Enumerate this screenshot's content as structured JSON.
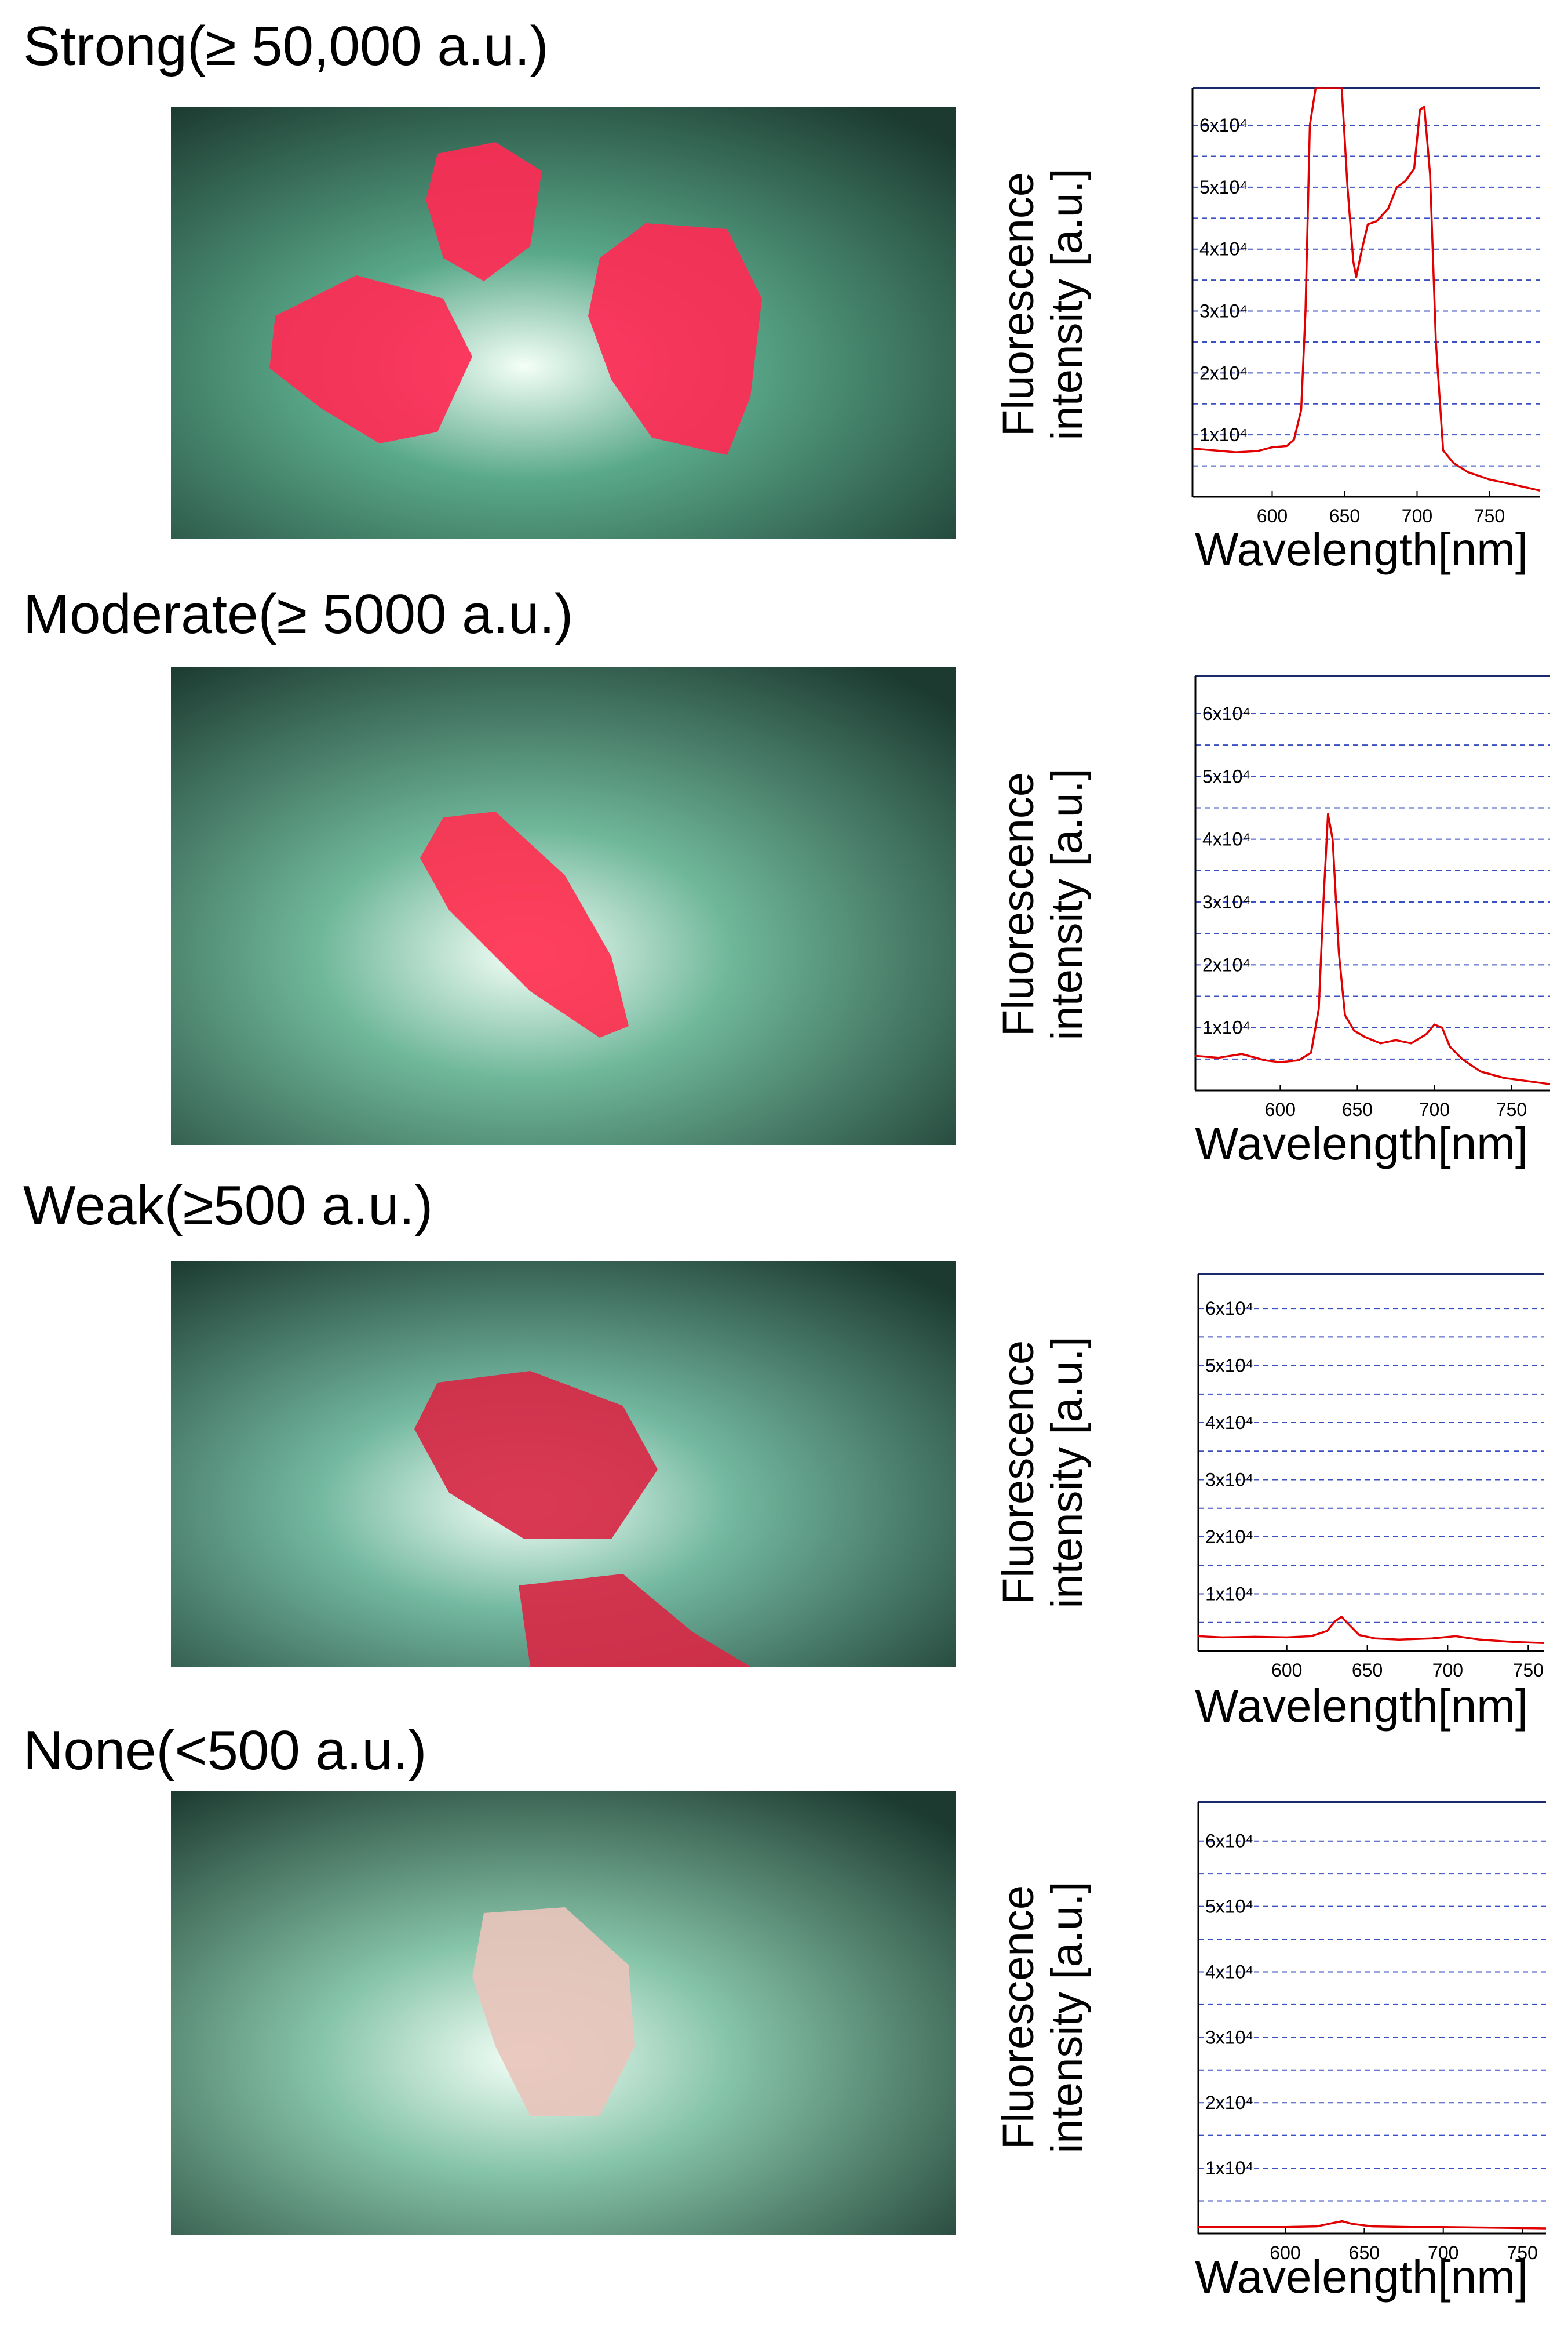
{
  "panels": [
    {
      "heading": "Strong(≥ 50,000 a.u.)",
      "photo": {
        "tissue_color": "#ff2a55",
        "background_color": "#5aa98a"
      },
      "chart_data": {
        "type": "line",
        "xlabel": "Wavelength[nm]",
        "ylabel_line1": "Fluorescence",
        "ylabel_line2": "intensity [a.u.]",
        "x_ticks": [
          "600",
          "650",
          "700",
          "750"
        ],
        "x_tick_values": [
          600,
          650,
          700,
          750
        ],
        "y_ticks": [
          "1x10⁴",
          "2x10⁴",
          "3x10⁴",
          "4x10⁴",
          "5x10⁴",
          "6x10⁴"
        ],
        "y_tick_values": [
          10000,
          20000,
          30000,
          40000,
          50000,
          60000
        ],
        "xlim": [
          545,
          785
        ],
        "ylim": [
          0,
          66000
        ],
        "grid": true,
        "series": [
          {
            "color": "#e00000",
            "x": [
              545,
              560,
              575,
              590,
              600,
              610,
              615,
              620,
              623,
              626,
              630,
              640,
              648,
              652,
              656,
              658,
              662,
              666,
              672,
              680,
              686,
              692,
              698,
              702,
              705,
              709,
              713,
              718,
              725,
              735,
              750,
              770,
              785
            ],
            "y": [
              7800,
              7500,
              7200,
              7400,
              8000,
              8200,
              9200,
              14000,
              30000,
              60000,
              66000,
              66000,
              66000,
              50000,
              38000,
              35500,
              40000,
              44000,
              44500,
              46500,
              50000,
              51000,
              53000,
              62500,
              63000,
              52000,
              25000,
              7500,
              5500,
              4000,
              2800,
              1800,
              1000
            ]
          }
        ]
      }
    },
    {
      "heading": "Moderate(≥ 5000 a.u.)",
      "photo": {
        "tissue_color": "#ff3050",
        "background_color": "#6fb79a"
      },
      "chart_data": {
        "type": "line",
        "xlabel": "Wavelength[nm]",
        "ylabel_line1": "Fluorescence",
        "ylabel_line2": "intensity [a.u.]",
        "x_ticks": [
          "600",
          "650",
          "700",
          "750"
        ],
        "x_tick_values": [
          600,
          650,
          700,
          750
        ],
        "y_ticks": [
          "1x10⁴",
          "2x10⁴",
          "3x10⁴",
          "4x10⁴",
          "5x10⁴",
          "6x10⁴"
        ],
        "y_tick_values": [
          10000,
          20000,
          30000,
          40000,
          50000,
          60000
        ],
        "xlim": [
          545,
          775
        ],
        "ylim": [
          0,
          66000
        ],
        "grid": true,
        "series": [
          {
            "color": "#e00000",
            "x": [
              545,
              560,
              575,
              590,
              600,
              612,
              620,
              625,
              628,
              631,
              634,
              638,
              642,
              648,
              655,
              665,
              675,
              685,
              695,
              700,
              705,
              710,
              718,
              730,
              745,
              760,
              775
            ],
            "y": [
              5500,
              5200,
              5800,
              4800,
              4500,
              4800,
              6000,
              13000,
              30000,
              44000,
              40000,
              22000,
              12000,
              9500,
              8500,
              7500,
              8000,
              7500,
              9000,
              10500,
              10000,
              7000,
              5000,
              3000,
              2000,
              1500,
              1000
            ]
          }
        ]
      }
    },
    {
      "heading": "Weak(≥500 a.u.)",
      "photo": {
        "tissue_color": "#d82845",
        "background_color": "#73b8a0"
      },
      "chart_data": {
        "type": "line",
        "xlabel": "Wavelength[nm]",
        "ylabel_line1": "Fluorescence",
        "ylabel_line2": "intensity [a.u.]",
        "x_ticks": [
          "600",
          "650",
          "700",
          "750"
        ],
        "x_tick_values": [
          600,
          650,
          700,
          750
        ],
        "y_ticks": [
          "1x10⁴",
          "2x10⁴",
          "3x10⁴",
          "4x10⁴",
          "5x10⁴",
          "6x10⁴"
        ],
        "y_tick_values": [
          10000,
          20000,
          30000,
          40000,
          50000,
          60000
        ],
        "xlim": [
          545,
          760
        ],
        "ylim": [
          0,
          66000
        ],
        "grid": true,
        "series": [
          {
            "color": "#e00000",
            "x": [
              545,
              560,
              580,
              600,
              615,
              625,
              630,
              634,
              638,
              645,
              655,
              670,
              690,
              705,
              720,
              740,
              760
            ],
            "y": [
              2600,
              2400,
              2500,
              2400,
              2600,
              3500,
              5200,
              6000,
              4800,
              2800,
              2200,
              2000,
              2200,
              2600,
              2000,
              1600,
              1400
            ]
          }
        ]
      }
    },
    {
      "heading": "None(<500 a.u.)",
      "photo": {
        "tissue_color": "#e8c4bc",
        "background_color": "#86c4a8"
      },
      "chart_data": {
        "type": "line",
        "xlabel": "Wavelength[nm]",
        "ylabel_line1": "Fluorescence",
        "ylabel_line2": "intensity [a.u.]",
        "x_ticks": [
          "600",
          "650",
          "700",
          "750"
        ],
        "x_tick_values": [
          600,
          650,
          700,
          750
        ],
        "y_ticks": [
          "1x10⁴",
          "2x10⁴",
          "3x10⁴",
          "4x10⁴",
          "5x10⁴",
          "6x10⁴"
        ],
        "y_tick_values": [
          10000,
          20000,
          30000,
          40000,
          50000,
          60000
        ],
        "xlim": [
          545,
          765
        ],
        "ylim": [
          0,
          66000
        ],
        "grid": true,
        "series": [
          {
            "color": "#e00000",
            "x": [
              545,
              570,
              600,
              620,
              630,
              636,
              642,
              655,
              680,
              700,
              730,
              765
            ],
            "y": [
              1000,
              1000,
              1000,
              1100,
              1600,
              1900,
              1500,
              1100,
              1000,
              1000,
              900,
              800
            ]
          }
        ]
      }
    }
  ]
}
